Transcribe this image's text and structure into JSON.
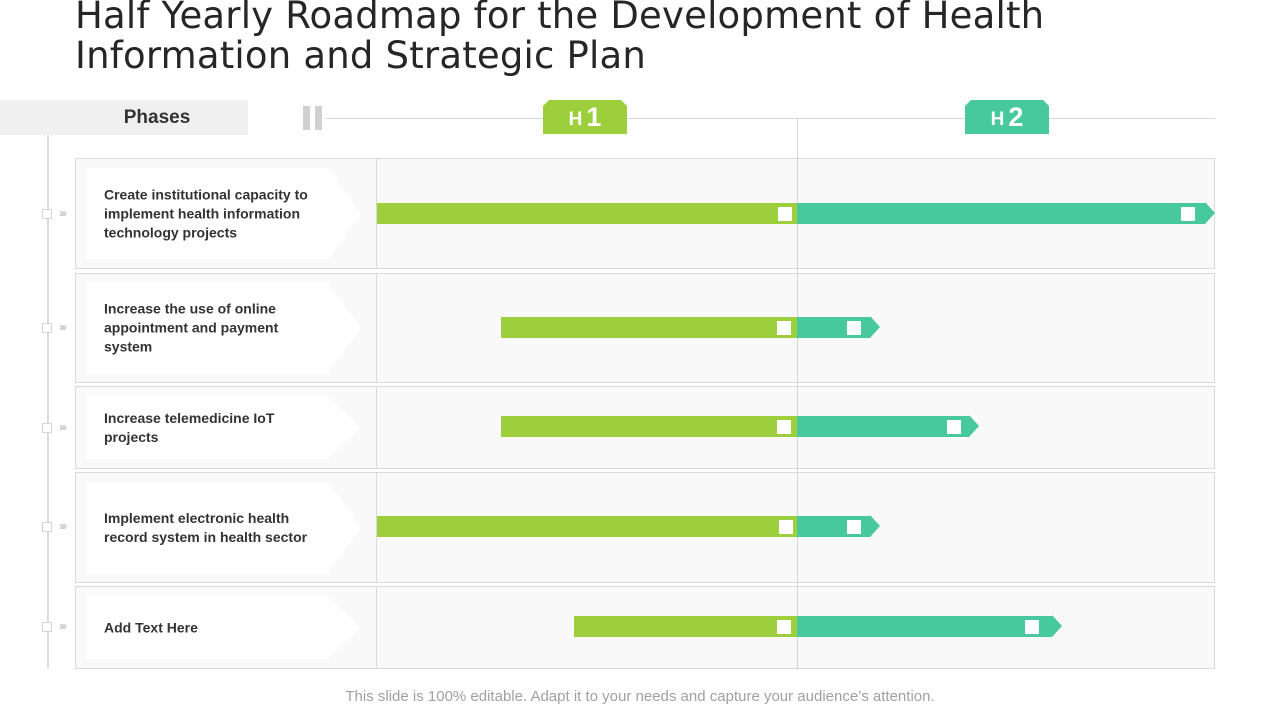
{
  "title": "Half Yearly Roadmap for the Development of Health Information and Strategic Plan",
  "header": {
    "phases_label": "Phases",
    "columns": [
      {
        "letter": "H",
        "number": "1",
        "color": "#9ccf3b"
      },
      {
        "letter": "H",
        "number": "2",
        "color": "#47c99d"
      }
    ]
  },
  "rows": [
    {
      "label": "Create institutional capacity to implement health information technology projects"
    },
    {
      "label": "Increase the use of online appointment and payment system"
    },
    {
      "label": "Increase telemedicine IoT projects"
    },
    {
      "label": "Implement electronic health record system in health sector"
    },
    {
      "label": "Add Text Here"
    }
  ],
  "colors": {
    "h1_bar": "#9ccf3b",
    "h2_bar": "#47c99d"
  },
  "footer": "This slide is 100% editable. Adapt it to your needs and capture your audience’s attention."
}
